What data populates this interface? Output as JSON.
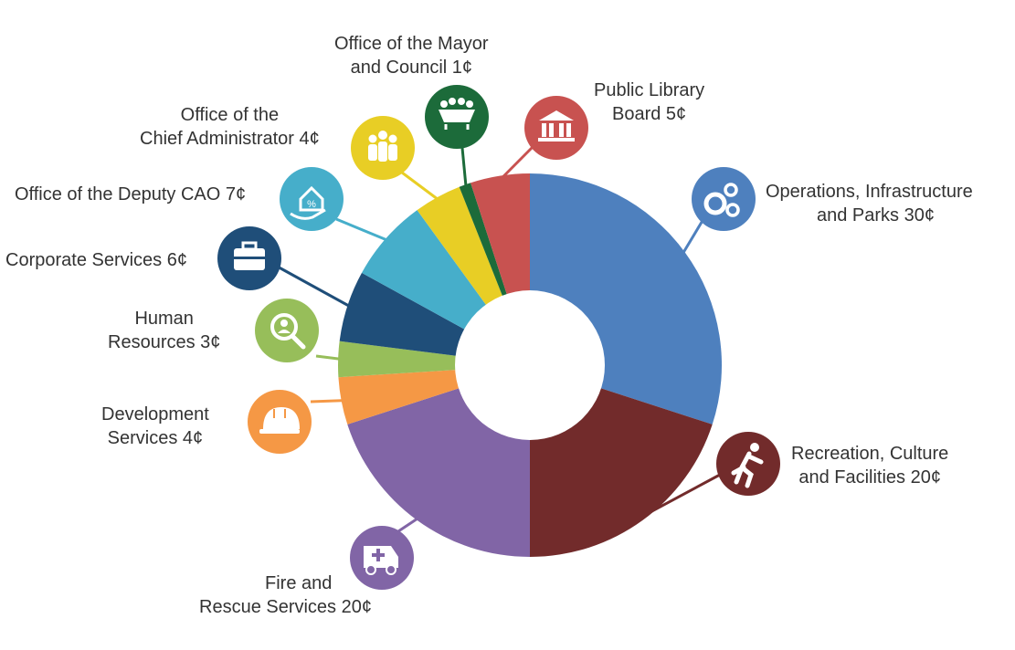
{
  "chart_data": {
    "type": "pie",
    "donut": true,
    "legend": "none",
    "slices": [
      {
        "key": "operations",
        "value": 30,
        "color": "#4E80BE",
        "icon": "gears-icon",
        "label_lines": [
          "Operations, Infrastructure",
          "and Parks 30¢"
        ]
      },
      {
        "key": "recreation",
        "value": 20,
        "color": "#722B2B",
        "icon": "running-person-icon",
        "label_lines": [
          "Recreation, Culture",
          "and Facilities 20¢"
        ]
      },
      {
        "key": "fire",
        "value": 20,
        "color": "#8165A6",
        "icon": "ambulance-icon",
        "label_lines": [
          "Fire and",
          "Rescue Services 20¢"
        ]
      },
      {
        "key": "development",
        "value": 4,
        "color": "#F59845",
        "icon": "hard-hat-icon",
        "label_lines": [
          "Development",
          "Services 4¢"
        ]
      },
      {
        "key": "hr",
        "value": 3,
        "color": "#97BE5A",
        "icon": "person-search-icon",
        "label_lines": [
          "Human",
          "Resources 3¢"
        ]
      },
      {
        "key": "corporate",
        "value": 6,
        "color": "#1F4E79",
        "icon": "briefcase-icon",
        "label_lines": [
          "Corporate Services 6¢"
        ]
      },
      {
        "key": "deputy_cao",
        "value": 7,
        "color": "#46AECA",
        "icon": "house-percent-icon",
        "label_lines": [
          "Office of the Deputy CAO 7¢"
        ]
      },
      {
        "key": "cao",
        "value": 4,
        "color": "#E8CE25",
        "icon": "people-group-icon",
        "label_lines": [
          "Office of the",
          "Chief Administrator 4¢"
        ]
      },
      {
        "key": "mayor",
        "value": 1,
        "color": "#1C6B3A",
        "icon": "council-table-icon",
        "label_lines": [
          "Office of the Mayor",
          "and Council 1¢"
        ]
      },
      {
        "key": "library",
        "value": 5,
        "color": "#C85250",
        "icon": "library-building-icon",
        "label_lines": [
          "Public Library",
          "Board 5¢"
        ]
      }
    ]
  }
}
